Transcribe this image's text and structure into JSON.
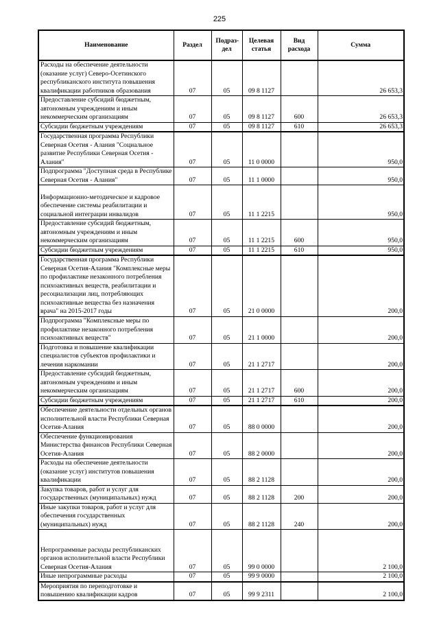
{
  "page_number": "225",
  "headers": [
    "Наименование",
    "Раздел",
    "Подраз-дел",
    "Целевая статья",
    "Вид расхода",
    "Сумма"
  ],
  "rows": [
    {
      "name": "Расходы на обеспечение деятельности (оказание услуг) Северо-Осетинского республиканского института повышения квалификации работников образования",
      "razdel": "07",
      "podrazdel": "05",
      "statya": "09 8 1127",
      "vid": "",
      "summa": "26 653,3"
    },
    {
      "name": "Предоставление субсидий бюджетным, автономным учреждениям и иным некоммерческим организациям",
      "razdel": "07",
      "podrazdel": "05",
      "statya": "09 8 1127",
      "vid": "600",
      "summa": "26 653,3"
    },
    {
      "name": "Субсидии бюджетным учреждениям",
      "razdel": "07",
      "podrazdel": "05",
      "statya": "09 8 1127",
      "vid": "610",
      "summa": "26 653,3"
    },
    {
      "name": "Государственная программа Республики Северная Осетия - Алания \"Социальное развитие Республики Северная Осетия - Алания\"",
      "razdel": "07",
      "podrazdel": "05",
      "statya": "11 0 0000",
      "vid": "",
      "summa": "950,0"
    },
    {
      "name": "Подпрограмма \"Доступная среда в Республике Северная Осетия - Алания\"",
      "razdel": "07",
      "podrazdel": "05",
      "statya": "11 1 0000",
      "vid": "",
      "summa": "950,0"
    },
    {
      "name": "Информационно-методическое и кадровое обеспечение системы реабилитации и социальной интеграции инвалидов",
      "razdel": "07",
      "podrazdel": "05",
      "statya": "11 1 2215",
      "vid": "",
      "summa": "950,0"
    },
    {
      "name": "Предоставление субсидий бюджетным, автономным учреждениям и иным некоммерческим организациям",
      "razdel": "07",
      "podrazdel": "05",
      "statya": "11 1 2215",
      "vid": "600",
      "summa": "950,0"
    },
    {
      "name": "Субсидии бюджетным учреждениям",
      "razdel": "07",
      "podrazdel": "05",
      "statya": "11 1 2215",
      "vid": "610",
      "summa": "950,0"
    },
    {
      "name": "Государственная программа Республики Северная Осетия-Алания \"Комплексные меры по профилактике незаконного потребления психоактивных веществ, реабилитации и ресоциализации лиц, потребляющих психоактивные вещества без назначения врача\" на 2015-2017 годы",
      "razdel": "07",
      "podrazdel": "05",
      "statya": "21 0 0000",
      "vid": "",
      "summa": "200,0"
    },
    {
      "name": "Подпрограмма \"Комплексные меры по профилактике незаконного потребления психоактивных веществ\"",
      "razdel": "07",
      "podrazdel": "05",
      "statya": "21 1 0000",
      "vid": "",
      "summa": "200,0"
    },
    {
      "name": "Подготовка и повышение квалификации специалистов субъектов профилактики и лечения наркомании",
      "razdel": "07",
      "podrazdel": "05",
      "statya": "21 1 2717",
      "vid": "",
      "summa": "200,0"
    },
    {
      "name": "Предоставление субсидий бюджетным, автономным учреждениям и иным некоммерческим организациям",
      "razdel": "07",
      "podrazdel": "05",
      "statya": "21 1 2717",
      "vid": "600",
      "summa": "200,0"
    },
    {
      "name": "Субсидии бюджетным учреждениям",
      "razdel": "07",
      "podrazdel": "05",
      "statya": "21 1 2717",
      "vid": "610",
      "summa": "200,0"
    },
    {
      "name": "Обеспечение деятельности отдельных органов исполнительной власти Республики Северная Осетия-Алания",
      "razdel": "07",
      "podrazdel": "05",
      "statya": "88 0 0000",
      "vid": "",
      "summa": "200,0"
    },
    {
      "name": "Обеспечение функционирования Министерства финансов Республики Северная Осетия-Алания",
      "razdel": "07",
      "podrazdel": "05",
      "statya": "88 2 0000",
      "vid": "",
      "summa": "200,0"
    },
    {
      "name": "Расходы на обеспечение деятельности (оказание услуг) институтов повышения квалификации",
      "razdel": "07",
      "podrazdel": "05",
      "statya": "88 2 1128",
      "vid": "",
      "summa": "200,0"
    },
    {
      "name": "Закупка товаров, работ и услуг для государственных (муниципальных) нужд",
      "razdel": "07",
      "podrazdel": "05",
      "statya": "88 2 1128",
      "vid": "200",
      "summa": "200,0"
    },
    {
      "name": "Иные закупки товаров, работ и услуг для обеспечения государственных (муниципальных) нужд",
      "razdel": "07",
      "podrazdel": "05",
      "statya": "88 2 1128",
      "vid": "240",
      "summa": "200,0"
    },
    {
      "name": "Непрограммные расходы республиканских органов исполнительной власти Республики Северная Осетия-Алания",
      "razdel": "07",
      "podrazdel": "05",
      "statya": "99 0 0000",
      "vid": "",
      "summa": "2 100,0"
    },
    {
      "name": "Иные непрограммные расходы",
      "razdel": "07",
      "podrazdel": "05",
      "statya": "99 9 0000",
      "vid": "",
      "summa": "2 100,0"
    },
    {
      "name": "Мероприятия по переподготовке и повышению квалификации кадров",
      "razdel": "07",
      "podrazdel": "05",
      "statya": "99 9 2311",
      "vid": "",
      "summa": "2 100,0"
    }
  ]
}
